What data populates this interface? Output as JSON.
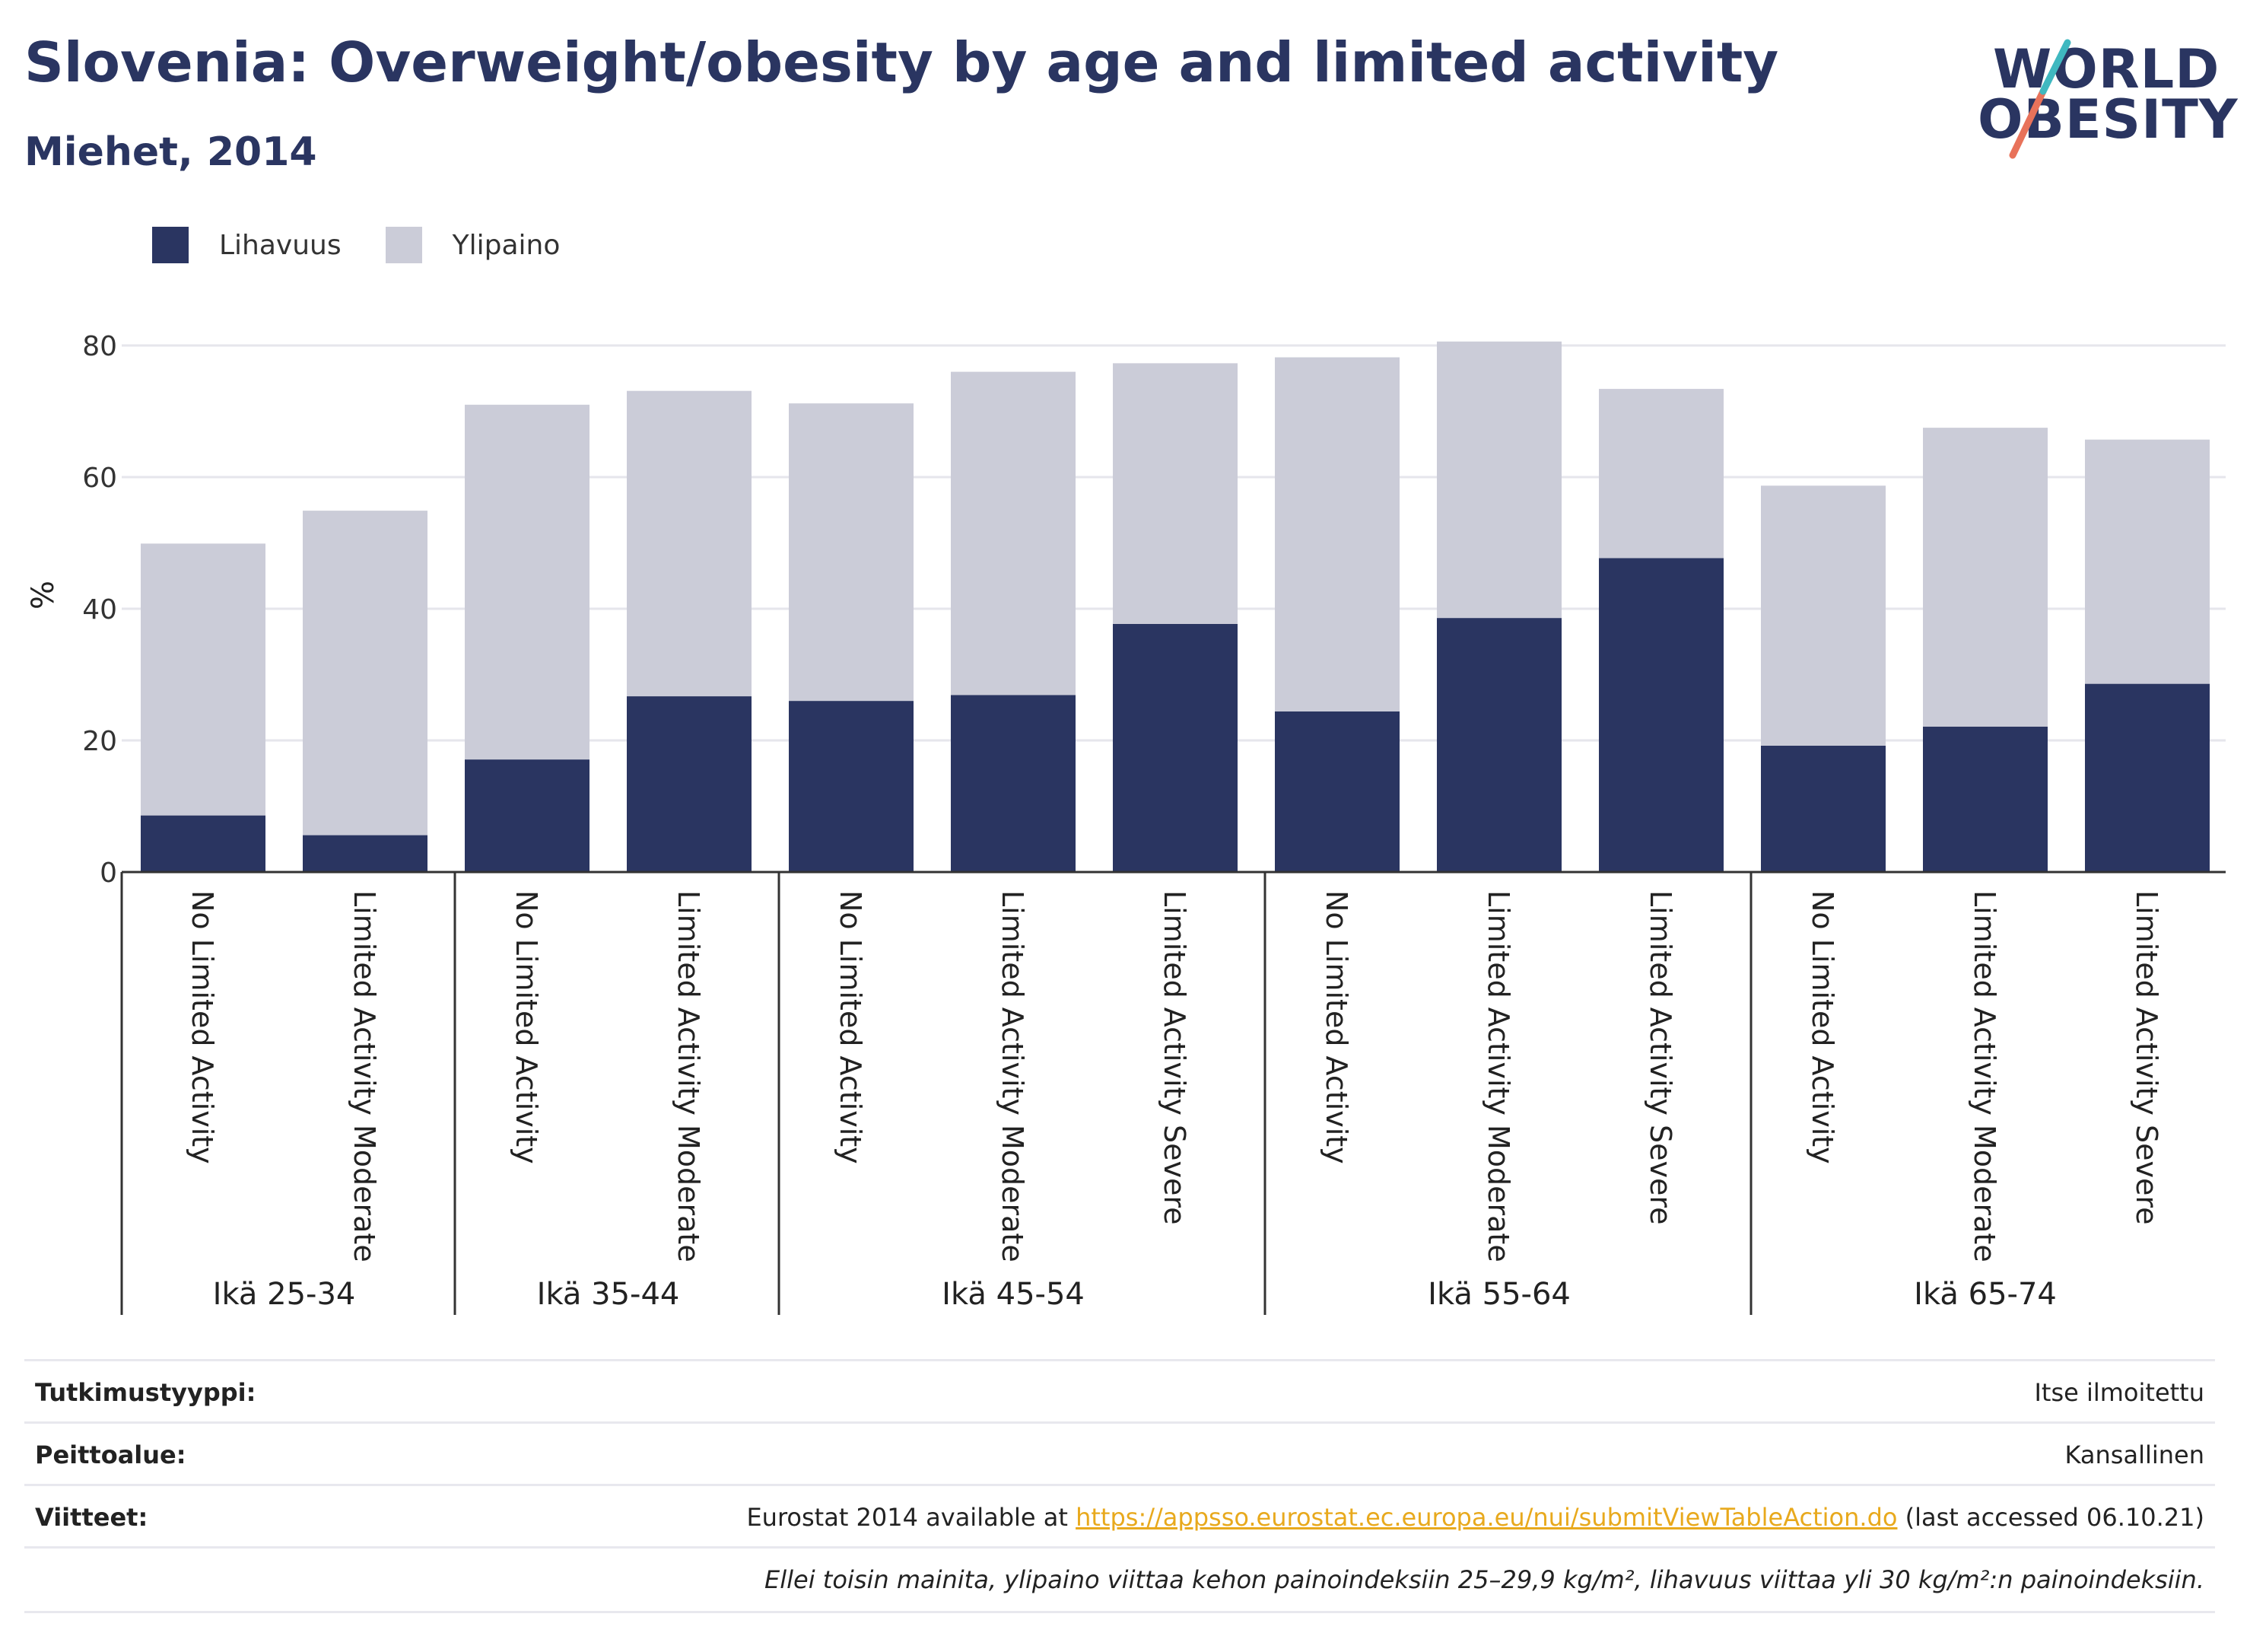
{
  "title": "Slovenia: Overweight/obesity by age and limited activity",
  "subtitle": "Miehet, 2014",
  "logo": {
    "line1": "WORLD",
    "line2": "OBESITY"
  },
  "legend": [
    {
      "label": "Lihavuus",
      "color": "#2a3561"
    },
    {
      "label": "Ylipaino",
      "color": "#cbccd8"
    }
  ],
  "chart_data": {
    "type": "bar",
    "stacked": true,
    "ylabel": "%",
    "ylim": [
      0,
      80
    ],
    "yticks": [
      0,
      20,
      40,
      60,
      80
    ],
    "grid": true,
    "legend_position": "top-left",
    "groups": [
      {
        "label": "Ikä 25-34",
        "categories": [
          "No Limited Activity",
          "Limited Activity Moderate"
        ]
      },
      {
        "label": "Ikä 35-44",
        "categories": [
          "No Limited Activity",
          "Limited Activity Moderate"
        ]
      },
      {
        "label": "Ikä 45-54",
        "categories": [
          "No Limited Activity",
          "Limited Activity Moderate",
          "Limited Activity Severe"
        ]
      },
      {
        "label": "Ikä 55-64",
        "categories": [
          "No Limited Activity",
          "Limited Activity Moderate",
          "Limited Activity Severe"
        ]
      },
      {
        "label": "Ikä 65-74",
        "categories": [
          "No Limited Activity",
          "Limited Activity Moderate",
          "Limited Activity Severe"
        ]
      }
    ],
    "series": [
      {
        "name": "Lihavuus",
        "color": "#2a3561",
        "values": [
          8.6,
          5.6,
          17.1,
          26.7,
          26.0,
          26.9,
          37.7,
          24.4,
          38.6,
          47.7,
          19.2,
          22.1,
          28.6
        ]
      },
      {
        "name": "Ylipaino",
        "color": "#cbccd8",
        "values": [
          41.3,
          49.3,
          53.9,
          46.4,
          45.2,
          49.1,
          39.6,
          53.8,
          42.0,
          25.7,
          39.5,
          45.4,
          37.1
        ]
      }
    ]
  },
  "meta": {
    "rows": [
      {
        "label": "Tutkimustyyppi:",
        "value": "Itse ilmoitettu"
      },
      {
        "label": "Peittoalue:",
        "value": "Kansallinen"
      },
      {
        "label": "Viitteet:",
        "value_prefix": "Eurostat 2014 available at ",
        "link": "https://appsso.eurostat.ec.europa.eu/nui/submitViewTableAction.do",
        "value_suffix": " (last accessed 06.10.21)"
      }
    ],
    "note": "Ellei toisin mainita, ylipaino viittaa kehon painoindeksiin 25–29,9 kg/m², lihavuus viittaa yli 30 kg/m²:n painoindeksiin."
  }
}
